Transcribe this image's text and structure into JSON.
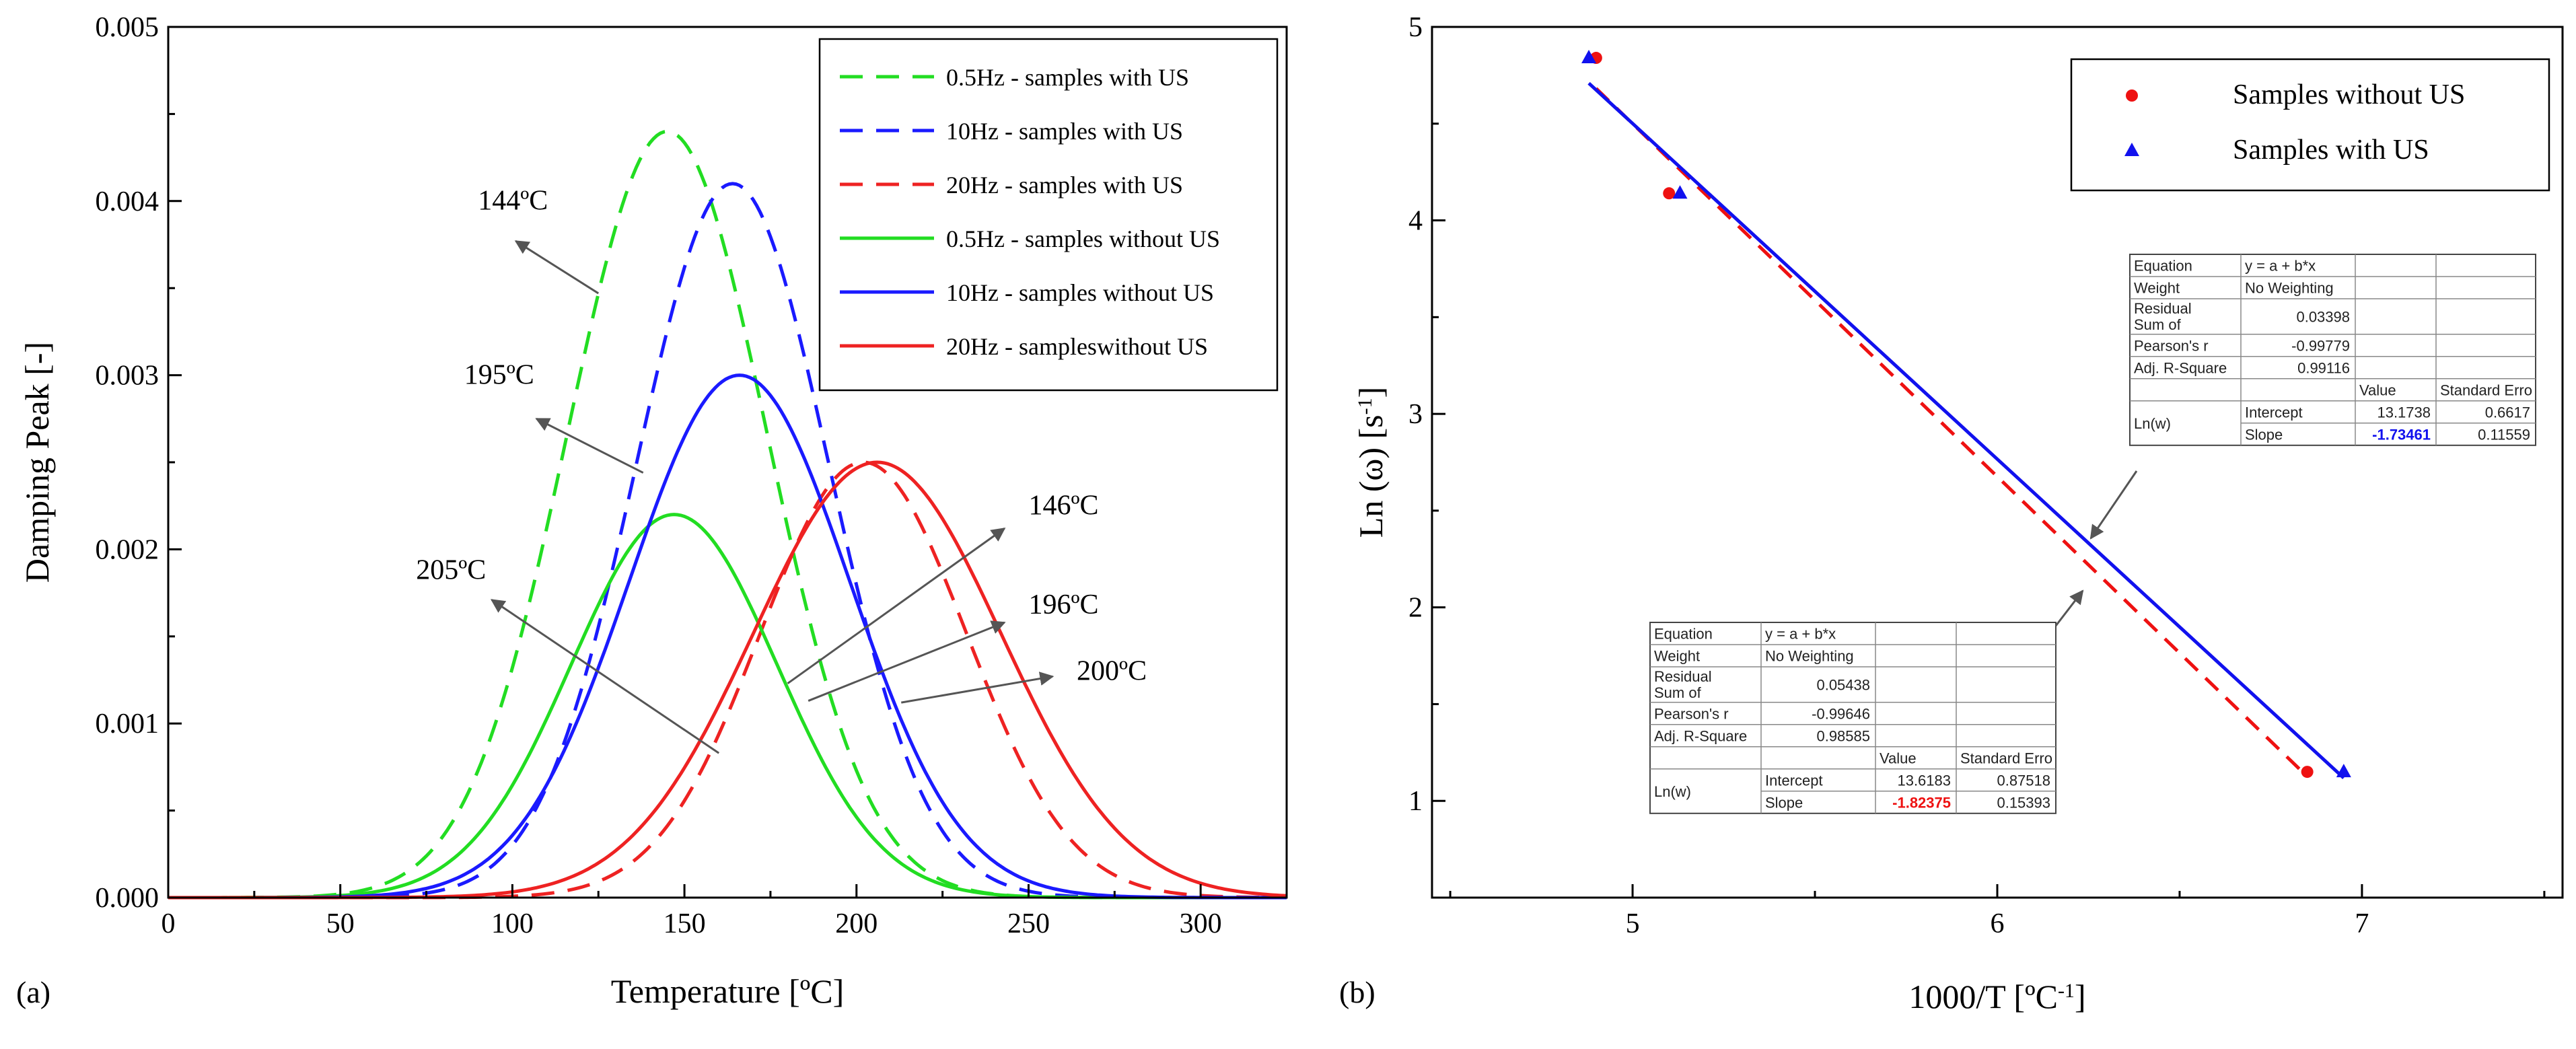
{
  "chart_data": [
    {
      "panel_label": "(a)",
      "type": "line",
      "xlabel": "Temperature [ºC]",
      "ylabel": "Damping Peak [-]",
      "xlim": [
        0,
        325
      ],
      "ylim": [
        0,
        0.005
      ],
      "xticks": [
        0,
        50,
        100,
        150,
        200,
        250,
        300
      ],
      "xtick_labels": [
        "0",
        "50",
        "100",
        "150",
        "200",
        "250",
        "300"
      ],
      "yticks": [
        0,
        0.001,
        0.002,
        0.003,
        0.004,
        0.005
      ],
      "ytick_labels": [
        "0.000",
        "0.001",
        "0.002",
        "0.003",
        "0.004",
        "0.005"
      ],
      "grid": false,
      "legend_position": "top-right",
      "series": [
        {
          "name": "0.5Hz - samples with US",
          "color": "#22dd22",
          "style": "dashed",
          "peak_x": 145,
          "peak_y": 0.0044,
          "sigma": 29
        },
        {
          "name": "10Hz - samples with US",
          "color": "#1a1aff",
          "style": "dashed",
          "peak_x": 164,
          "peak_y": 0.0041,
          "sigma": 28
        },
        {
          "name": "20Hz - samples with US",
          "color": "#ee2222",
          "style": "dashed",
          "peak_x": 202,
          "peak_y": 0.0025,
          "sigma": 30
        },
        {
          "name": "0.5Hz - samples without US",
          "color": "#22dd22",
          "style": "solid",
          "peak_x": 147,
          "peak_y": 0.0022,
          "sigma": 30
        },
        {
          "name": "10Hz - samples without US",
          "color": "#1a1aff",
          "style": "solid",
          "peak_x": 166,
          "peak_y": 0.003,
          "sigma": 32
        },
        {
          "name": "20Hz  - sampleswithout US",
          "color": "#ee2222",
          "style": "solid",
          "peak_x": 206,
          "peak_y": 0.0025,
          "sigma": 36
        }
      ],
      "annotations": [
        {
          "text": "144ºC",
          "text_x": 90,
          "text_y": 0.00395,
          "arrow_from": [
            125,
            0.00347
          ],
          "arrow_to": [
            101,
            0.00377
          ]
        },
        {
          "text": "195ºC",
          "text_x": 86,
          "text_y": 0.00295,
          "arrow_from": [
            138,
            0.00244
          ],
          "arrow_to": [
            107,
            0.00275
          ]
        },
        {
          "text": "205ºC",
          "text_x": 72,
          "text_y": 0.00183,
          "arrow_from": [
            160,
            0.00083
          ],
          "arrow_to": [
            94,
            0.00171
          ]
        },
        {
          "text": "146ºC",
          "text_x": 250,
          "text_y": 0.0022,
          "arrow_from": [
            180,
            0.00123
          ],
          "arrow_to": [
            243,
            0.00212
          ]
        },
        {
          "text": "196ºC",
          "text_x": 250,
          "text_y": 0.00163,
          "arrow_from": [
            186,
            0.00113
          ],
          "arrow_to": [
            243,
            0.00158
          ]
        },
        {
          "text": "200ºC",
          "text_x": 264,
          "text_y": 0.00125,
          "arrow_from": [
            213,
            0.00112
          ],
          "arrow_to": [
            257,
            0.00127
          ]
        }
      ]
    },
    {
      "panel_label": "(b)",
      "type": "scatter",
      "xlabel": "1000/T [ºC⁻¹]",
      "ylabel": "Ln (ω) [s⁻¹]",
      "xlim": [
        4.45,
        7.55
      ],
      "ylim": [
        0.5,
        5
      ],
      "xticks": [
        5,
        6,
        7
      ],
      "xtick_labels": [
        "5",
        "6",
        "7"
      ],
      "yticks": [
        1,
        2,
        3,
        4,
        5
      ],
      "ytick_labels": [
        "1",
        "2",
        "3",
        "4",
        "5"
      ],
      "grid": false,
      "legend_position": "top-right",
      "series": [
        {
          "name": "Samples without US",
          "color": "#ee1111",
          "marker": "circle",
          "x": [
            4.9,
            5.1,
            6.85
          ],
          "y": [
            4.84,
            4.14,
            1.15
          ],
          "fit_intercept": 13.6183,
          "fit_slope": -1.82375,
          "fit_style": "dashed"
        },
        {
          "name": "Samples with US",
          "color": "#1111ee",
          "marker": "triangle",
          "x": [
            4.88,
            5.13,
            6.95
          ],
          "y": [
            4.84,
            4.14,
            1.15
          ],
          "fit_intercept": 13.1738,
          "fit_slope": -1.73461,
          "fit_style": "solid"
        }
      ],
      "fit_tables": [
        {
          "equation_label": "Equation",
          "equation": "y = a + b*x",
          "weight_label": "Weight",
          "weight": "No Weighting",
          "residual_label": "Residual\nSum of",
          "residual": "0.03398",
          "pearson_label": "Pearson's r",
          "pearson": "-0.99779",
          "adjr2_label": "Adj. R-Square",
          "adjr2": "0.99116",
          "value_header": "Value",
          "error_header": "Standard Erro",
          "row_group": "Ln(w)",
          "intercept_label": "Intercept",
          "intercept": "13.1738",
          "intercept_err": "0.6617",
          "slope_label": "Slope",
          "slope": "-1.73461",
          "slope_err": "0.11559",
          "slope_color": "#1111ee"
        },
        {
          "equation_label": "Equation",
          "equation": "y = a + b*x",
          "weight_label": "Weight",
          "weight": "No Weighting",
          "residual_label": "Residual\nSum of",
          "residual": "0.05438",
          "pearson_label": "Pearson's r",
          "pearson": "-0.99646",
          "adjr2_label": "Adj. R-Square",
          "adjr2": "0.98585",
          "value_header": "Value",
          "error_header": "Standard Erro",
          "row_group": "Ln(w)",
          "intercept_label": "Intercept",
          "intercept": "13.6183",
          "intercept_err": "0.87518",
          "slope_label": "Slope",
          "slope": "-1.82375",
          "slope_err": "0.15393",
          "slope_color": "#ee1111"
        }
      ]
    }
  ]
}
